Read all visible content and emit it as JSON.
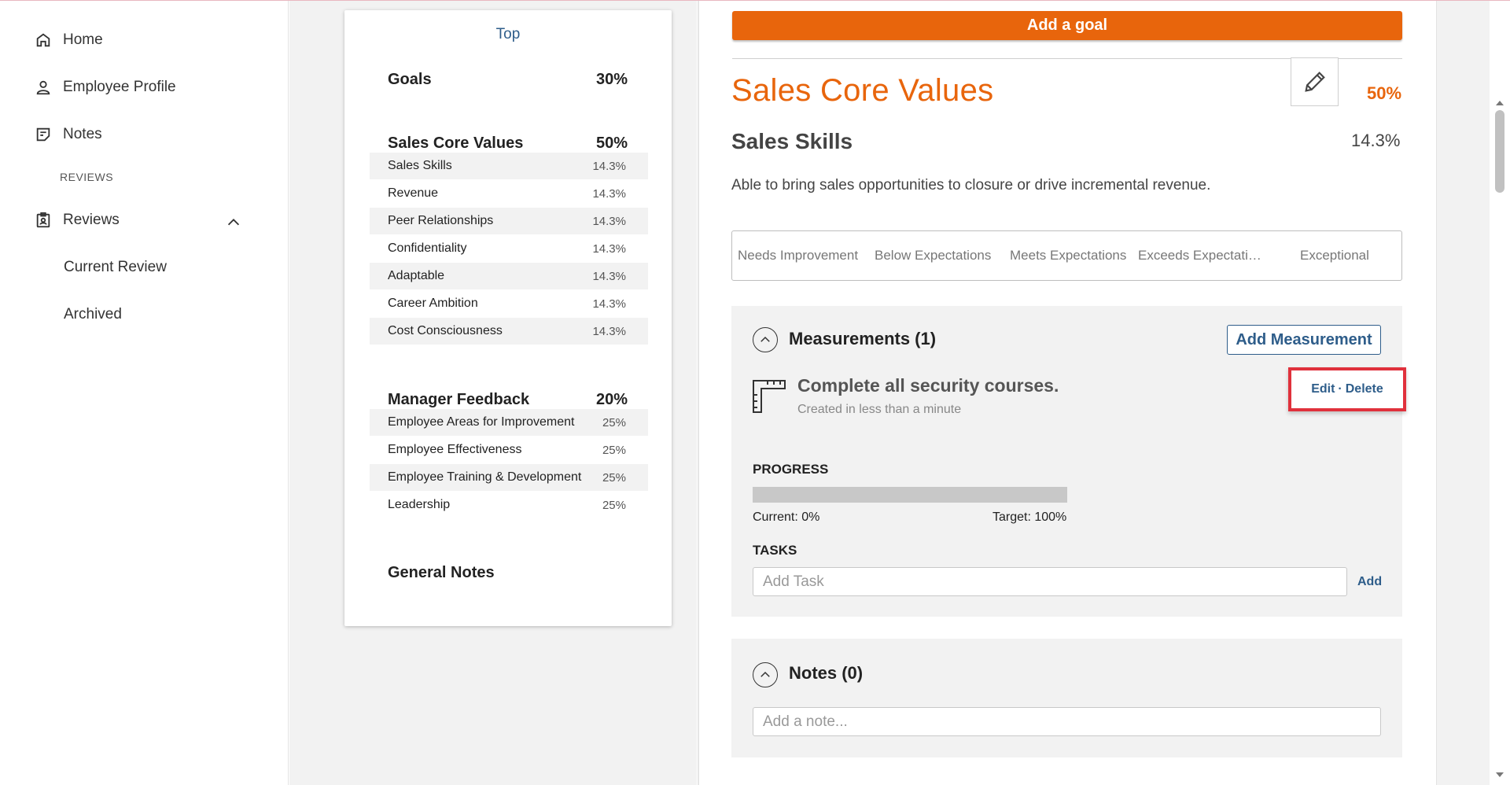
{
  "sidebar": {
    "items": [
      {
        "label": "Home",
        "icon": "home-icon"
      },
      {
        "label": "Employee Profile",
        "icon": "person-icon"
      },
      {
        "label": "Notes",
        "icon": "notes-icon"
      }
    ],
    "section_label": "REVIEWS",
    "reviews": {
      "label": "Reviews",
      "icon": "clipboard-icon",
      "expanded": true
    },
    "subitems": [
      {
        "label": "Current Review"
      },
      {
        "label": "Archived"
      }
    ]
  },
  "toc": {
    "top_link": "Top",
    "sections": [
      {
        "title": "Goals",
        "pct": "30%",
        "items": []
      },
      {
        "title": "Sales Core Values",
        "pct": "50%",
        "items": [
          {
            "label": "Sales Skills",
            "pct": "14.3%"
          },
          {
            "label": "Revenue",
            "pct": "14.3%"
          },
          {
            "label": "Peer Relationships",
            "pct": "14.3%"
          },
          {
            "label": "Confidentiality",
            "pct": "14.3%"
          },
          {
            "label": "Adaptable",
            "pct": "14.3%"
          },
          {
            "label": "Career Ambition",
            "pct": "14.3%"
          },
          {
            "label": "Cost Consciousness",
            "pct": "14.3%"
          }
        ]
      },
      {
        "title": "Manager Feedback",
        "pct": "20%",
        "items": [
          {
            "label": "Employee Areas for Improvement",
            "pct": "25%"
          },
          {
            "label": "Employee Effectiveness",
            "pct": "25%"
          },
          {
            "label": "Employee Training & Development",
            "pct": "25%"
          },
          {
            "label": "Leadership",
            "pct": "25%"
          }
        ]
      },
      {
        "title": "General Notes",
        "pct": "",
        "items": []
      }
    ]
  },
  "main": {
    "add_goal_label": "Add a goal",
    "goal_title": "Sales Core Values",
    "goal_pct": "50%",
    "skill_title": "Sales Skills",
    "skill_pct": "14.3%",
    "skill_desc": "Able to bring sales opportunities to closure or drive incremental revenue.",
    "rating_options": [
      "Needs Improvement",
      "Below Expectations",
      "Meets Expectations",
      "Exceeds Expectati…",
      "Exceptional"
    ],
    "measurements": {
      "title": "Measurements (1)",
      "add_label": "Add Measurement",
      "item": {
        "title": "Complete all security courses.",
        "created": "Created in less than a minute",
        "edit_label": "Edit",
        "separator": "·",
        "delete_label": "Delete"
      },
      "progress_label": "PROGRESS",
      "progress_value": 0,
      "current_label": "Current: 0%",
      "target_label": "Target: 100%",
      "tasks_label": "TASKS",
      "task_placeholder": "Add Task",
      "task_add_label": "Add"
    },
    "notes": {
      "title": "Notes (0)",
      "placeholder": "Add a note..."
    }
  },
  "colors": {
    "accent": "#e8650c",
    "link": "#2e5d8a",
    "highlight": "#e0313c"
  }
}
